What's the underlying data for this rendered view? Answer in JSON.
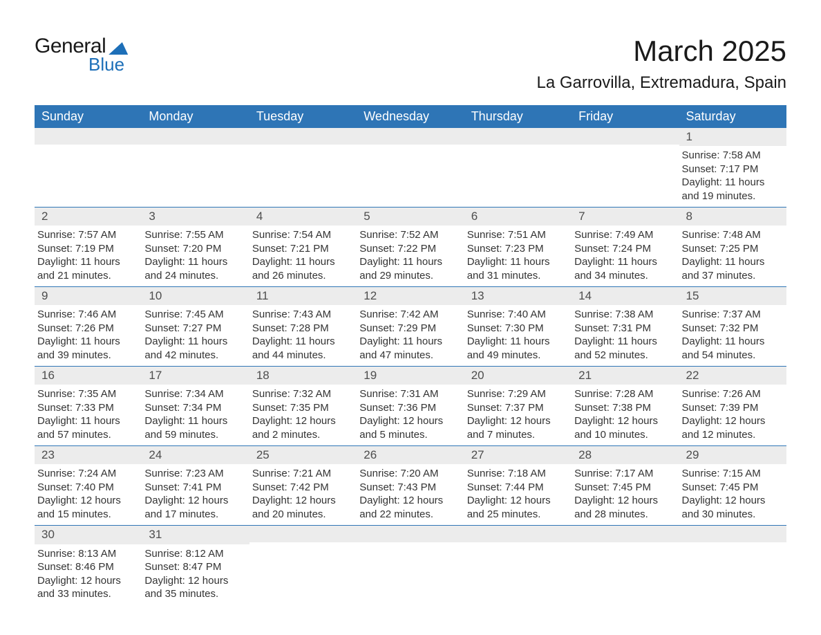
{
  "logo": {
    "general": "General",
    "blue": "Blue"
  },
  "title": "March 2025",
  "subtitle": "La Garrovilla, Extremadura, Spain",
  "colors": {
    "header_bg": "#2e75b6",
    "header_text": "#ffffff",
    "row_border": "#2e75b6",
    "daynum_bg": "#ececec",
    "daynum_text": "#4d4d4d",
    "body_text": "#333333",
    "logo_blue": "#1d6fb8",
    "title_text": "#1a1a1a",
    "page_bg": "#ffffff"
  },
  "typography": {
    "title_fontsize": 42,
    "subtitle_fontsize": 24,
    "header_fontsize": 18,
    "daynum_fontsize": 17,
    "cell_fontsize": 15,
    "font_family": "Arial"
  },
  "weekdays": [
    "Sunday",
    "Monday",
    "Tuesday",
    "Wednesday",
    "Thursday",
    "Friday",
    "Saturday"
  ],
  "weeks": [
    [
      null,
      null,
      null,
      null,
      null,
      null,
      {
        "n": "1",
        "sunrise": "Sunrise: 7:58 AM",
        "sunset": "Sunset: 7:17 PM",
        "day1": "Daylight: 11 hours",
        "day2": "and 19 minutes."
      }
    ],
    [
      {
        "n": "2",
        "sunrise": "Sunrise: 7:57 AM",
        "sunset": "Sunset: 7:19 PM",
        "day1": "Daylight: 11 hours",
        "day2": "and 21 minutes."
      },
      {
        "n": "3",
        "sunrise": "Sunrise: 7:55 AM",
        "sunset": "Sunset: 7:20 PM",
        "day1": "Daylight: 11 hours",
        "day2": "and 24 minutes."
      },
      {
        "n": "4",
        "sunrise": "Sunrise: 7:54 AM",
        "sunset": "Sunset: 7:21 PM",
        "day1": "Daylight: 11 hours",
        "day2": "and 26 minutes."
      },
      {
        "n": "5",
        "sunrise": "Sunrise: 7:52 AM",
        "sunset": "Sunset: 7:22 PM",
        "day1": "Daylight: 11 hours",
        "day2": "and 29 minutes."
      },
      {
        "n": "6",
        "sunrise": "Sunrise: 7:51 AM",
        "sunset": "Sunset: 7:23 PM",
        "day1": "Daylight: 11 hours",
        "day2": "and 31 minutes."
      },
      {
        "n": "7",
        "sunrise": "Sunrise: 7:49 AM",
        "sunset": "Sunset: 7:24 PM",
        "day1": "Daylight: 11 hours",
        "day2": "and 34 minutes."
      },
      {
        "n": "8",
        "sunrise": "Sunrise: 7:48 AM",
        "sunset": "Sunset: 7:25 PM",
        "day1": "Daylight: 11 hours",
        "day2": "and 37 minutes."
      }
    ],
    [
      {
        "n": "9",
        "sunrise": "Sunrise: 7:46 AM",
        "sunset": "Sunset: 7:26 PM",
        "day1": "Daylight: 11 hours",
        "day2": "and 39 minutes."
      },
      {
        "n": "10",
        "sunrise": "Sunrise: 7:45 AM",
        "sunset": "Sunset: 7:27 PM",
        "day1": "Daylight: 11 hours",
        "day2": "and 42 minutes."
      },
      {
        "n": "11",
        "sunrise": "Sunrise: 7:43 AM",
        "sunset": "Sunset: 7:28 PM",
        "day1": "Daylight: 11 hours",
        "day2": "and 44 minutes."
      },
      {
        "n": "12",
        "sunrise": "Sunrise: 7:42 AM",
        "sunset": "Sunset: 7:29 PM",
        "day1": "Daylight: 11 hours",
        "day2": "and 47 minutes."
      },
      {
        "n": "13",
        "sunrise": "Sunrise: 7:40 AM",
        "sunset": "Sunset: 7:30 PM",
        "day1": "Daylight: 11 hours",
        "day2": "and 49 minutes."
      },
      {
        "n": "14",
        "sunrise": "Sunrise: 7:38 AM",
        "sunset": "Sunset: 7:31 PM",
        "day1": "Daylight: 11 hours",
        "day2": "and 52 minutes."
      },
      {
        "n": "15",
        "sunrise": "Sunrise: 7:37 AM",
        "sunset": "Sunset: 7:32 PM",
        "day1": "Daylight: 11 hours",
        "day2": "and 54 minutes."
      }
    ],
    [
      {
        "n": "16",
        "sunrise": "Sunrise: 7:35 AM",
        "sunset": "Sunset: 7:33 PM",
        "day1": "Daylight: 11 hours",
        "day2": "and 57 minutes."
      },
      {
        "n": "17",
        "sunrise": "Sunrise: 7:34 AM",
        "sunset": "Sunset: 7:34 PM",
        "day1": "Daylight: 11 hours",
        "day2": "and 59 minutes."
      },
      {
        "n": "18",
        "sunrise": "Sunrise: 7:32 AM",
        "sunset": "Sunset: 7:35 PM",
        "day1": "Daylight: 12 hours",
        "day2": "and 2 minutes."
      },
      {
        "n": "19",
        "sunrise": "Sunrise: 7:31 AM",
        "sunset": "Sunset: 7:36 PM",
        "day1": "Daylight: 12 hours",
        "day2": "and 5 minutes."
      },
      {
        "n": "20",
        "sunrise": "Sunrise: 7:29 AM",
        "sunset": "Sunset: 7:37 PM",
        "day1": "Daylight: 12 hours",
        "day2": "and 7 minutes."
      },
      {
        "n": "21",
        "sunrise": "Sunrise: 7:28 AM",
        "sunset": "Sunset: 7:38 PM",
        "day1": "Daylight: 12 hours",
        "day2": "and 10 minutes."
      },
      {
        "n": "22",
        "sunrise": "Sunrise: 7:26 AM",
        "sunset": "Sunset: 7:39 PM",
        "day1": "Daylight: 12 hours",
        "day2": "and 12 minutes."
      }
    ],
    [
      {
        "n": "23",
        "sunrise": "Sunrise: 7:24 AM",
        "sunset": "Sunset: 7:40 PM",
        "day1": "Daylight: 12 hours",
        "day2": "and 15 minutes."
      },
      {
        "n": "24",
        "sunrise": "Sunrise: 7:23 AM",
        "sunset": "Sunset: 7:41 PM",
        "day1": "Daylight: 12 hours",
        "day2": "and 17 minutes."
      },
      {
        "n": "25",
        "sunrise": "Sunrise: 7:21 AM",
        "sunset": "Sunset: 7:42 PM",
        "day1": "Daylight: 12 hours",
        "day2": "and 20 minutes."
      },
      {
        "n": "26",
        "sunrise": "Sunrise: 7:20 AM",
        "sunset": "Sunset: 7:43 PM",
        "day1": "Daylight: 12 hours",
        "day2": "and 22 minutes."
      },
      {
        "n": "27",
        "sunrise": "Sunrise: 7:18 AM",
        "sunset": "Sunset: 7:44 PM",
        "day1": "Daylight: 12 hours",
        "day2": "and 25 minutes."
      },
      {
        "n": "28",
        "sunrise": "Sunrise: 7:17 AM",
        "sunset": "Sunset: 7:45 PM",
        "day1": "Daylight: 12 hours",
        "day2": "and 28 minutes."
      },
      {
        "n": "29",
        "sunrise": "Sunrise: 7:15 AM",
        "sunset": "Sunset: 7:45 PM",
        "day1": "Daylight: 12 hours",
        "day2": "and 30 minutes."
      }
    ],
    [
      {
        "n": "30",
        "sunrise": "Sunrise: 8:13 AM",
        "sunset": "Sunset: 8:46 PM",
        "day1": "Daylight: 12 hours",
        "day2": "and 33 minutes."
      },
      {
        "n": "31",
        "sunrise": "Sunrise: 8:12 AM",
        "sunset": "Sunset: 8:47 PM",
        "day1": "Daylight: 12 hours",
        "day2": "and 35 minutes."
      },
      null,
      null,
      null,
      null,
      null
    ]
  ]
}
